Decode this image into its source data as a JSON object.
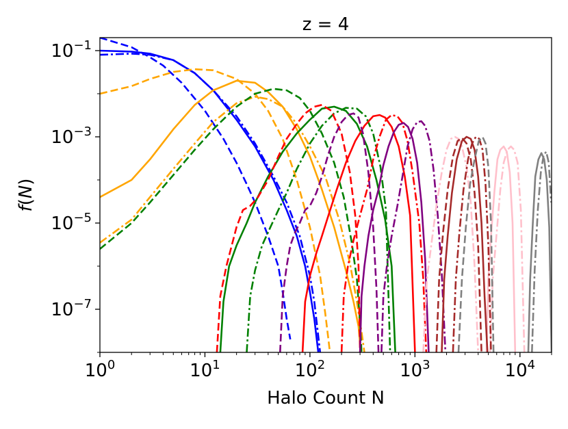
{
  "chart_data": {
    "type": "line",
    "title": "z = 4",
    "xlabel": "Halo Count N",
    "ylabel": "f(N)",
    "xscale": "log",
    "yscale": "log",
    "xlim": [
      1,
      20000
    ],
    "ylim": [
      1e-08,
      0.2
    ],
    "grid": false,
    "x_ticks": [
      {
        "value": 1,
        "base": "10",
        "exp": "0"
      },
      {
        "value": 10,
        "base": "10",
        "exp": "1"
      },
      {
        "value": 100,
        "base": "10",
        "exp": "2"
      },
      {
        "value": 1000,
        "base": "10",
        "exp": "3"
      },
      {
        "value": 10000,
        "base": "10",
        "exp": "4"
      }
    ],
    "y_ticks": [
      {
        "value": 0.1,
        "base": "10",
        "exp": "−1"
      },
      {
        "value": 0.001,
        "base": "10",
        "exp": "−3"
      },
      {
        "value": 1e-05,
        "base": "10",
        "exp": "−5"
      },
      {
        "value": 1e-07,
        "base": "10",
        "exp": "−7"
      }
    ],
    "series": [
      {
        "color": "#0000ff",
        "dash": "solid",
        "x": [
          1,
          2,
          3,
          5,
          8,
          12,
          20,
          30,
          45,
          60,
          75,
          90,
          100,
          110,
          120
        ],
        "y": [
          0.1,
          0.095,
          0.085,
          0.06,
          0.03,
          0.012,
          0.0025,
          0.0006,
          0.0001,
          2e-05,
          5e-06,
          1e-06,
          2.5e-07,
          6e-08,
          1e-08
        ]
      },
      {
        "color": "#0000ff",
        "dash": "dashed",
        "x": [
          1,
          2,
          3,
          4,
          6,
          10,
          15,
          20,
          25,
          30,
          40,
          50,
          55,
          60,
          65
        ],
        "y": [
          0.2,
          0.12,
          0.07,
          0.045,
          0.018,
          0.004,
          0.0009,
          0.00025,
          8e-05,
          3e-05,
          5e-06,
          1e-06,
          2.5e-07,
          6e-08,
          2e-08
        ]
      },
      {
        "color": "#0000ff",
        "dash": "dashdot",
        "x": [
          1,
          2,
          3,
          5,
          8,
          12,
          20,
          30,
          45,
          60,
          80,
          100,
          110,
          125
        ],
        "y": [
          0.08,
          0.085,
          0.08,
          0.06,
          0.03,
          0.012,
          0.003,
          0.0007,
          0.00012,
          3e-05,
          5e-06,
          6e-07,
          1.5e-07,
          1e-08
        ]
      },
      {
        "color": "#ffa500",
        "dash": "solid",
        "x": [
          1,
          2,
          3,
          5,
          8,
          12,
          20,
          30,
          40,
          55,
          75,
          100,
          130,
          170,
          220,
          260,
          290,
          305
        ],
        "y": [
          4e-05,
          0.0001,
          0.0003,
          0.0015,
          0.0055,
          0.012,
          0.02,
          0.018,
          0.011,
          0.005,
          0.0015,
          0.00035,
          6e-05,
          8e-06,
          8e-07,
          1.5e-07,
          4e-08,
          1e-08
        ]
      },
      {
        "color": "#ffa500",
        "dash": "dashed",
        "x": [
          1,
          2,
          3,
          5,
          8,
          12,
          20,
          30,
          40,
          55,
          75,
          100,
          125,
          140,
          150,
          155
        ],
        "y": [
          0.01,
          0.015,
          0.022,
          0.032,
          0.037,
          0.035,
          0.022,
          0.01,
          0.004,
          0.0009,
          0.0001,
          8e-06,
          6e-07,
          8e-08,
          2e-08,
          1e-08
        ]
      },
      {
        "color": "#ffa500",
        "dash": "dashdot",
        "x": [
          1,
          2,
          3,
          5,
          8,
          12,
          20,
          30,
          40,
          55,
          75,
          100,
          140,
          190,
          240,
          280,
          310,
          330
        ],
        "y": [
          3.5e-06,
          1.2e-05,
          4e-05,
          0.00018,
          0.0007,
          0.0022,
          0.006,
          0.0085,
          0.0075,
          0.005,
          0.002,
          0.0006,
          0.00012,
          1.2e-05,
          1.2e-06,
          1.5e-07,
          3e-08,
          1e-08
        ]
      },
      {
        "color": "#008000",
        "dash": "solid",
        "x": [
          14,
          15,
          17,
          20,
          25,
          30,
          40,
          55,
          75,
          100,
          130,
          170,
          220,
          280,
          350,
          430,
          520,
          600,
          650
        ],
        "y": [
          1e-08,
          1.5e-07,
          1e-06,
          3e-06,
          1e-05,
          3e-05,
          0.00012,
          0.00045,
          0.0012,
          0.0025,
          0.0045,
          0.005,
          0.004,
          0.002,
          0.0006,
          0.0001,
          1.2e-05,
          1e-06,
          1e-08
        ]
      },
      {
        "color": "#008000",
        "dash": "dashed",
        "x": [
          1,
          2,
          3,
          5,
          8,
          12,
          20,
          30,
          45,
          60,
          80,
          100,
          130,
          170,
          210,
          250,
          280,
          300,
          310
        ],
        "y": [
          2.5e-06,
          1e-05,
          3e-05,
          0.00013,
          0.0005,
          0.0015,
          0.005,
          0.01,
          0.013,
          0.012,
          0.008,
          0.004,
          0.0012,
          0.00025,
          4e-05,
          3.5e-06,
          5e-07,
          5e-08,
          1e-08
        ]
      },
      {
        "color": "#008000",
        "dash": "dashdot",
        "x": [
          25,
          27,
          30,
          35,
          42,
          50,
          60,
          75,
          100,
          130,
          170,
          220,
          280,
          340,
          400,
          470,
          530,
          580
        ],
        "y": [
          1e-08,
          2e-07,
          8e-07,
          3e-06,
          8e-06,
          2e-05,
          5e-05,
          0.00018,
          0.0007,
          0.0018,
          0.0035,
          0.0047,
          0.0045,
          0.003,
          0.0012,
          0.0002,
          2e-05,
          1e-08
        ]
      },
      {
        "color": "#ff0000",
        "dash": "solid",
        "x": [
          85,
          90,
          100,
          115,
          130,
          150,
          180,
          220,
          270,
          330,
          400,
          460,
          520,
          600,
          700,
          800,
          900,
          1000
        ],
        "y": [
          1e-08,
          1.5e-07,
          6e-07,
          2e-06,
          5e-06,
          1.5e-05,
          6e-05,
          0.00025,
          0.0008,
          0.0018,
          0.003,
          0.0032,
          0.0028,
          0.0017,
          0.0006,
          0.00012,
          1.5e-05,
          1e-08
        ]
      },
      {
        "color": "#ff0000",
        "dash": "dashed",
        "x": [
          13,
          14,
          16,
          18,
          20,
          23,
          27,
          32,
          40,
          50,
          60,
          75,
          90,
          110,
          130,
          160,
          200,
          240,
          270,
          290,
          300
        ],
        "y": [
          1e-08,
          2e-07,
          1e-06,
          3e-06,
          8e-06,
          2e-05,
          2.5e-05,
          4e-05,
          0.0001,
          0.00035,
          0.0009,
          0.002,
          0.0035,
          0.005,
          0.0055,
          0.004,
          0.0012,
          0.00015,
          1.5e-05,
          1e-06,
          1e-08
        ]
      },
      {
        "color": "#ff0000",
        "dash": "dashdot",
        "x": [
          200,
          210,
          230,
          260,
          300,
          350,
          400,
          460,
          530,
          600,
          680,
          760,
          850,
          950,
          1100,
          1200,
          1280
        ],
        "y": [
          1e-08,
          2e-07,
          1e-06,
          4e-06,
          1.5e-05,
          6e-05,
          0.0003,
          0.001,
          0.0025,
          0.0032,
          0.003,
          0.0021,
          0.0008,
          0.00015,
          1e-05,
          5e-07,
          1e-08
        ]
      },
      {
        "color": "#800080",
        "dash": "solid",
        "x": [
          300,
          310,
          330,
          360,
          400,
          450,
          500,
          560,
          630,
          700,
          780,
          860,
          950,
          1050,
          1150,
          1250,
          1350
        ],
        "y": [
          1e-08,
          2e-07,
          1e-06,
          5e-06,
          2e-05,
          6e-05,
          0.00022,
          0.0006,
          0.0013,
          0.0019,
          0.0021,
          0.0017,
          0.0009,
          0.00025,
          3e-05,
          1.5e-06,
          1e-08
        ]
      },
      {
        "color": "#800080",
        "dash": "dashed",
        "x": [
          52,
          55,
          60,
          65,
          72,
          80,
          90,
          100,
          115,
          130,
          150,
          170,
          200,
          230,
          260,
          290,
          320,
          360,
          400,
          430,
          450
        ],
        "y": [
          1e-08,
          2e-07,
          1e-06,
          3e-06,
          6e-06,
          1e-05,
          2e-05,
          2.5e-05,
          5e-05,
          0.00012,
          0.0004,
          0.001,
          0.0022,
          0.0032,
          0.0035,
          0.0028,
          0.0012,
          0.00015,
          8e-06,
          3e-07,
          1e-08
        ]
      },
      {
        "color": "#800080",
        "dash": "dashdot",
        "x": [
          480,
          500,
          540,
          600,
          680,
          760,
          850,
          950,
          1050,
          1150,
          1250,
          1380,
          1500,
          1650,
          1800,
          1950
        ],
        "y": [
          1e-08,
          2e-07,
          1e-06,
          5e-06,
          2.5e-05,
          0.00012,
          0.0006,
          0.0015,
          0.0022,
          0.0023,
          0.0018,
          0.0008,
          0.00018,
          1.5e-05,
          7e-07,
          1e-08
        ]
      },
      {
        "color": "#ffc0cb",
        "dash": "solid",
        "x": [
          4800,
          5000,
          5300,
          5700,
          6100,
          6500,
          7000,
          7500,
          8000,
          8500,
          9000
        ],
        "y": [
          1e-08,
          5e-07,
          5e-06,
          5e-05,
          0.0003,
          0.0005,
          0.0006,
          0.00045,
          0.00015,
          1e-05,
          1e-08
        ]
      },
      {
        "color": "#ffc0cb",
        "dash": "dashdot",
        "x": [
          1200,
          1300,
          1450,
          1600,
          1800,
          2000,
          2200,
          2400,
          2600,
          2800,
          3100,
          3400,
          3700,
          4000
        ],
        "y": [
          1e-08,
          5e-07,
          4e-06,
          2.5e-05,
          0.00015,
          0.0005,
          0.0009,
          0.001,
          0.0009,
          0.0006,
          0.0002,
          3e-05,
          1e-06,
          1e-08
        ]
      },
      {
        "color": "#ffc0cb",
        "dash": "dashdot",
        "x": [
          5200,
          5500,
          6000,
          6500,
          7000,
          7600,
          8200,
          8800,
          9500,
          10200,
          11000
        ],
        "y": [
          1e-08,
          5e-07,
          6e-06,
          6e-05,
          0.00025,
          0.0005,
          0.0006,
          0.0005,
          0.00025,
          2e-05,
          1e-08
        ]
      },
      {
        "color": "#a52a2a",
        "dash": "solid",
        "x": [
          1800,
          1900,
          2050,
          2250,
          2500,
          2800,
          3100,
          3400,
          3700,
          4000,
          4300,
          4600,
          4900
        ],
        "y": [
          1e-08,
          5e-07,
          5e-06,
          5e-05,
          0.0003,
          0.0008,
          0.001,
          0.0009,
          0.0005,
          0.00012,
          1e-05,
          2e-07,
          1e-08
        ]
      },
      {
        "color": "#a52a2a",
        "dash": "dashed",
        "x": [
          1600,
          1700,
          1850,
          2050,
          2300,
          2550,
          2800,
          3100,
          3400,
          3700,
          4000,
          4300
        ],
        "y": [
          1e-08,
          5e-07,
          6e-06,
          6e-05,
          0.00035,
          0.0008,
          0.00095,
          0.0007,
          0.0003,
          5e-05,
          3e-06,
          1e-08
        ]
      },
      {
        "color": "#a52a2a",
        "dash": "dashdot",
        "x": [
          2300,
          2450,
          2650,
          2900,
          3200,
          3500,
          3800,
          4100,
          4400,
          4700,
          5000,
          5300
        ],
        "y": [
          1e-08,
          5e-07,
          6e-06,
          6e-05,
          0.0003,
          0.0007,
          0.001,
          0.0009,
          0.0005,
          8e-05,
          3e-06,
          1e-08
        ]
      },
      {
        "color": "#808080",
        "dash": "solid",
        "x": [
          12000,
          12500,
          13200,
          14000,
          15000,
          16000,
          17000,
          18000,
          19000,
          20000
        ],
        "y": [
          1e-08,
          5e-07,
          8e-06,
          0.00012,
          0.0003,
          0.00042,
          0.0003,
          0.0001,
          8e-06,
          1e-08
        ]
      },
      {
        "color": "#808080",
        "dash": "dashed",
        "x": [
          2600,
          2800,
          3050,
          3350,
          3700,
          4050,
          4400,
          4700,
          5000,
          5300,
          5600
        ],
        "y": [
          1e-08,
          5e-07,
          8e-06,
          8e-05,
          0.0003,
          0.0008,
          0.001,
          0.0007,
          0.0002,
          1e-05,
          1e-08
        ]
      },
      {
        "color": "#808080",
        "dash": "dashdot",
        "x": [
          13000,
          13800,
          14800,
          15800,
          16800,
          17800,
          18800,
          19800
        ],
        "y": [
          1e-08,
          8e-07,
          2e-05,
          0.00015,
          0.00038,
          0.00045,
          0.00025,
          3e-05
        ]
      }
    ]
  }
}
